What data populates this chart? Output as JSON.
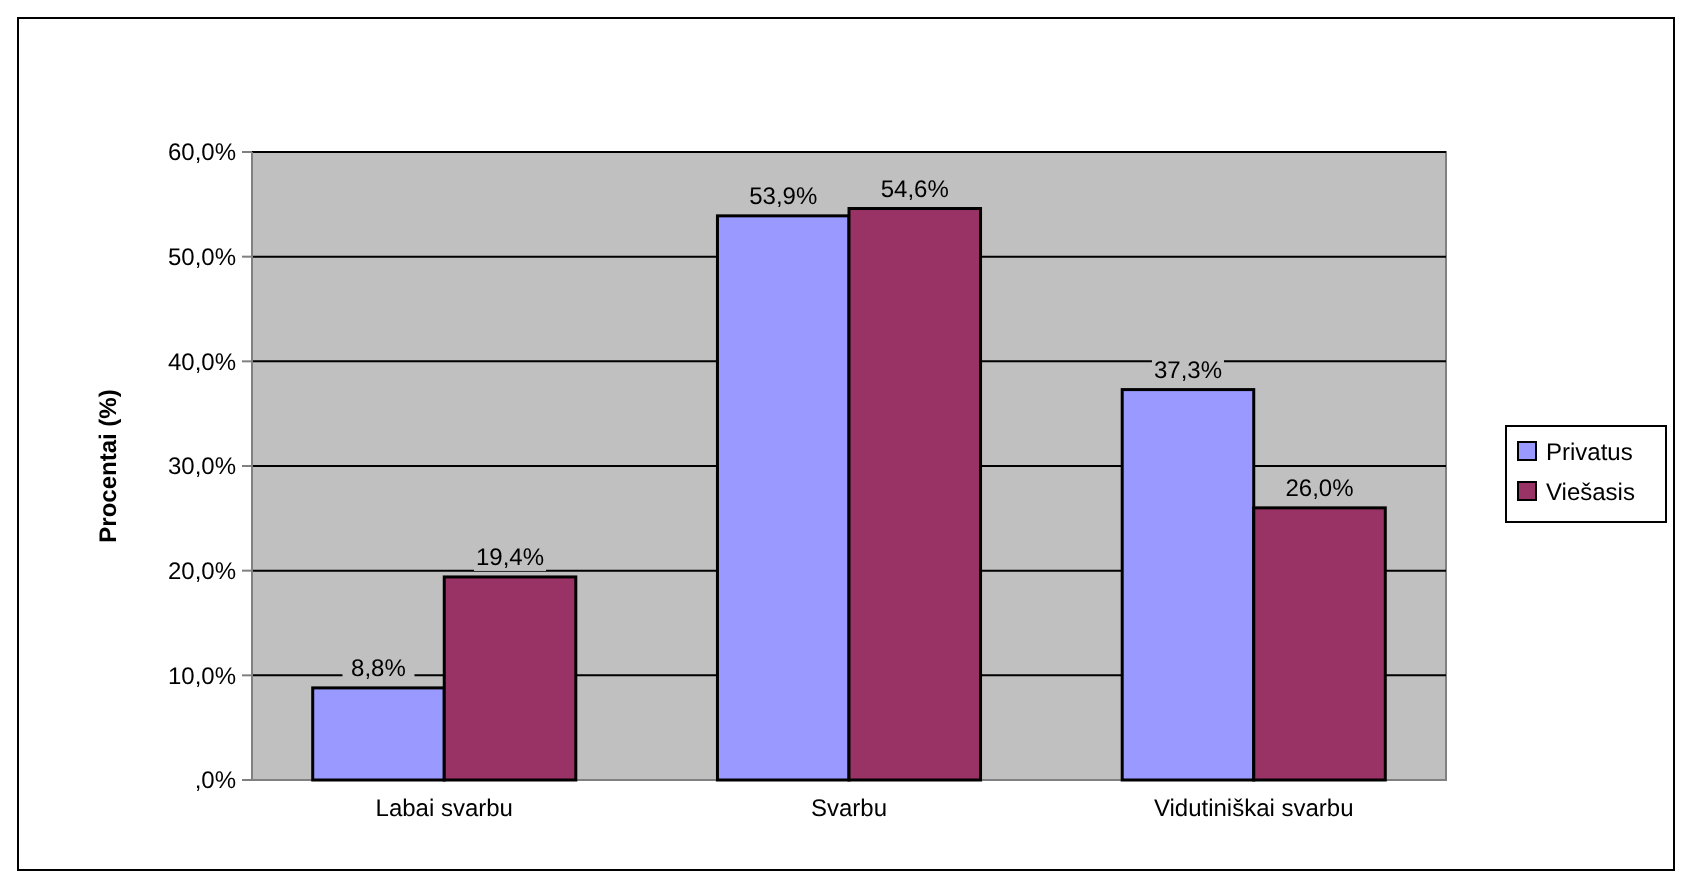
{
  "chart_data": {
    "type": "bar",
    "ylabel": "Procentai (%)",
    "categories": [
      "Labai svarbu",
      "Svarbu",
      "Vidutiniškai svarbu"
    ],
    "series": [
      {
        "name": "Privatus",
        "color": "#9999ff",
        "values": [
          8.8,
          53.9,
          37.3
        ],
        "value_labels": [
          "8,8%",
          "53,9%",
          "37,3%"
        ]
      },
      {
        "name": "Viešasis",
        "color": "#993366",
        "values": [
          19.4,
          54.6,
          26.0
        ],
        "value_labels": [
          "19,4%",
          "54,6%",
          "26,0%"
        ]
      }
    ],
    "ylim": [
      0,
      60
    ],
    "yticks": [
      {
        "value": 0,
        "label": ",0%"
      },
      {
        "value": 10,
        "label": "10,0%"
      },
      {
        "value": 20,
        "label": "20,0%"
      },
      {
        "value": 30,
        "label": "30,0%"
      },
      {
        "value": 40,
        "label": "40,0%"
      },
      {
        "value": 50,
        "label": "50,0%"
      },
      {
        "value": 60,
        "label": "60,0%"
      }
    ],
    "grid": "y",
    "legend": "right"
  }
}
